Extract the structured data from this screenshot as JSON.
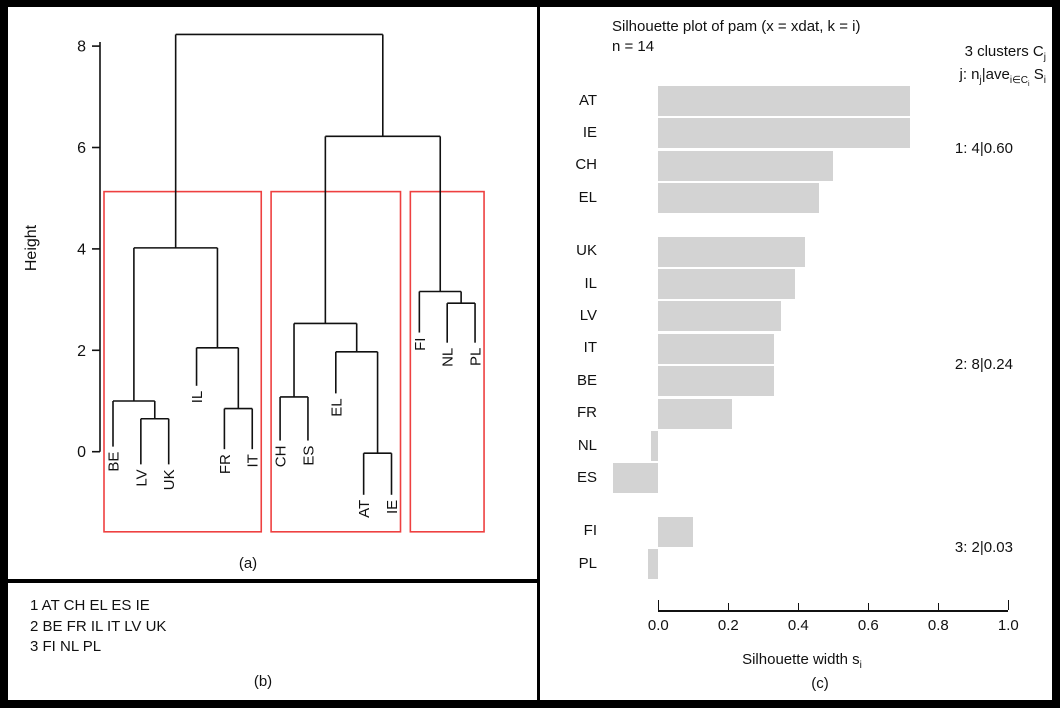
{
  "figure": {
    "panels": {
      "a": {
        "label": "(a)",
        "ylabel": "Height",
        "ytick_labels": [
          "0",
          "2",
          "4",
          "6",
          "8"
        ]
      },
      "b": {
        "label": "(b)",
        "lines": [
          "1 AT CH EL ES IE",
          "2 BE FR IL IT LV UK",
          "3 FI NL PL"
        ]
      },
      "c": {
        "label": "(c)",
        "title1": "Silhouette plot of pam (x = xdat, k = i)",
        "title2": "n = 14",
        "legend1": {
          "main": "3 clusters C",
          "sub": "j"
        },
        "legend2": {
          "p1": "j: n",
          "s1": "j",
          "p2": "|ave",
          "s2": "i∈C",
          "s3": "i",
          "p3": " S",
          "s4": "i"
        },
        "xlabel": {
          "main": "Silhouette width s",
          "sub": "i"
        },
        "xtick_labels": [
          "0.0",
          "0.2",
          "0.4",
          "0.6",
          "0.8",
          "1.0"
        ]
      }
    }
  },
  "chart_data": [
    {
      "type": "dendrogram",
      "panel": "a",
      "ylabel": "Height",
      "yticks": [
        0,
        2,
        4,
        6,
        8
      ],
      "ylim": [
        -1.6,
        8.6
      ],
      "leaves": [
        "BE",
        "LV",
        "UK",
        "IL",
        "FR",
        "IT",
        "CH",
        "ES",
        "EL",
        "AT",
        "IE",
        "FI",
        "NL",
        "PL"
      ],
      "leaf_hang_bottom": {
        "BE": 0.1,
        "LV": -0.25,
        "UK": -0.25,
        "IL": 1.3,
        "FR": 0.05,
        "IT": 0.05,
        "CH": 0.22,
        "ES": 0.22,
        "EL": 1.15,
        "AT": -0.85,
        "IE": -0.85,
        "FI": 2.35,
        "NL": 2.15,
        "PL": 2.15
      },
      "merges": [
        {
          "id": "m1",
          "a": "LV",
          "b": "UK",
          "height": 0.65
        },
        {
          "id": "m2",
          "a": "BE",
          "b": "m1",
          "height": 1.0
        },
        {
          "id": "m3",
          "a": "FR",
          "b": "IT",
          "height": 0.85
        },
        {
          "id": "m4",
          "a": "IL",
          "b": "m3",
          "height": 2.05
        },
        {
          "id": "m5",
          "a": "m2",
          "b": "m4",
          "height": 4.02
        },
        {
          "id": "m6",
          "a": "CH",
          "b": "ES",
          "height": 1.08
        },
        {
          "id": "m7",
          "a": "AT",
          "b": "IE",
          "height": -0.03
        },
        {
          "id": "m8",
          "a": "EL",
          "b": "m7",
          "height": 1.97
        },
        {
          "id": "m9",
          "a": "m6",
          "b": "m8",
          "height": 2.53
        },
        {
          "id": "m10",
          "a": "NL",
          "b": "PL",
          "height": 2.93
        },
        {
          "id": "m11",
          "a": "FI",
          "b": "m10",
          "height": 3.16
        },
        {
          "id": "m12",
          "a": "m9",
          "b": "m11",
          "height": 6.22
        },
        {
          "id": "m13",
          "a": "m5",
          "b": "m12",
          "height": 8.23
        }
      ],
      "cluster_boxes": [
        {
          "first": "BE",
          "last": "IT",
          "top": 5.13,
          "bottom": -1.58
        },
        {
          "first": "CH",
          "last": "IE",
          "top": 5.13,
          "bottom": -1.58
        },
        {
          "first": "FI",
          "last": "PL",
          "top": 5.13,
          "bottom": -1.58
        }
      ],
      "box_color": "#ee4040",
      "line_color": "#111111"
    },
    {
      "type": "bar",
      "panel": "c",
      "orientation": "horizontal",
      "title": "Silhouette plot of pam (x = xdat, k = i)",
      "subtitle": "n = 14",
      "xlabel": "Silhouette width s_i",
      "categories": [
        "AT",
        "IE",
        "CH",
        "EL",
        "UK",
        "IL",
        "LV",
        "IT",
        "BE",
        "FR",
        "NL",
        "ES",
        "FI",
        "PL"
      ],
      "values": [
        0.72,
        0.72,
        0.5,
        0.46,
        0.42,
        0.39,
        0.35,
        0.33,
        0.33,
        0.21,
        -0.02,
        -0.13,
        0.1,
        -0.03
      ],
      "clusters": [
        1,
        1,
        1,
        1,
        2,
        2,
        2,
        2,
        2,
        2,
        2,
        2,
        3,
        3
      ],
      "cluster_labels": [
        "1: 4|0.60",
        "2: 8|0.24",
        "3: 2|0.03"
      ],
      "n": 14,
      "k": 3,
      "xticks": [
        0,
        0.2,
        0.4,
        0.6,
        0.8,
        1.0
      ],
      "xlim": [
        -0.2,
        1.0
      ],
      "bar_color": "#d3d3d3",
      "legend_top": "3 clusters Cj",
      "legend_formula": "j: nj|ave i∈Ci Si"
    }
  ]
}
